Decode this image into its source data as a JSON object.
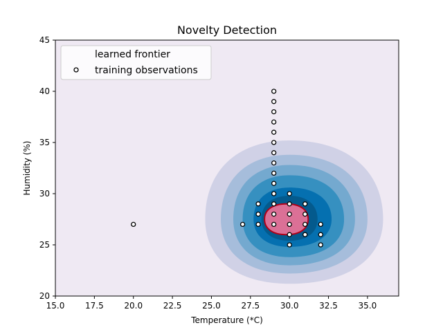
{
  "chart_data": {
    "type": "contour-scatter",
    "title": "Novelty Detection",
    "xlabel": "Temperature (*C)",
    "ylabel": "Humidity (%)",
    "xlim": [
      15.0,
      37.0
    ],
    "ylim": [
      20,
      45
    ],
    "xticks": [
      "15.0",
      "17.5",
      "20.0",
      "22.5",
      "25.0",
      "27.5",
      "30.0",
      "32.5",
      "35.0"
    ],
    "xtick_values": [
      15.0,
      17.5,
      20.0,
      22.5,
      25.0,
      27.5,
      30.0,
      32.5,
      35.0
    ],
    "yticks": [
      "20",
      "25",
      "30",
      "35",
      "40",
      "45"
    ],
    "ytick_values": [
      20,
      25,
      30,
      35,
      40,
      45
    ],
    "grid": false,
    "legend_position": "top-left",
    "legend": {
      "frontier_label": "learned frontier",
      "points_label": "training observations"
    },
    "colors": {
      "background": "#efe9f3",
      "contour_levels": [
        "#d0d1e6",
        "#a6bddb",
        "#74a9cf",
        "#3690c0",
        "#0570b0",
        "#045a8d"
      ],
      "frontier_fill": "#db7096",
      "frontier_edge": "#b00018",
      "point_edge": "#000000",
      "point_fill": "#ffffff"
    },
    "density_center": [
      30.0,
      27.5
    ],
    "contour_levels": [
      {
        "x_extent": [
          24.6,
          36.0
        ],
        "y_extent": [
          21.2,
          35.2
        ]
      },
      {
        "x_extent": [
          25.6,
          35.0
        ],
        "y_extent": [
          22.2,
          33.8
        ]
      },
      {
        "x_extent": [
          26.4,
          34.2
        ],
        "y_extent": [
          23.0,
          32.8
        ]
      },
      {
        "x_extent": [
          27.0,
          33.5
        ],
        "y_extent": [
          23.8,
          31.8
        ]
      },
      {
        "x_extent": [
          27.7,
          32.7
        ],
        "y_extent": [
          24.8,
          30.6
        ]
      },
      {
        "x_extent": [
          28.2,
          31.8
        ],
        "y_extent": [
          25.4,
          29.8
        ]
      }
    ],
    "frontier": {
      "x_extent": [
        28.4,
        31.2
      ],
      "y_extent": [
        26.0,
        29.0
      ]
    },
    "points": [
      [
        20,
        27
      ],
      [
        27,
        27
      ],
      [
        28,
        29
      ],
      [
        28,
        28
      ],
      [
        28,
        27
      ],
      [
        29,
        40
      ],
      [
        29,
        39
      ],
      [
        29,
        38
      ],
      [
        29,
        37
      ],
      [
        29,
        36
      ],
      [
        29,
        35
      ],
      [
        29,
        34
      ],
      [
        29,
        33
      ],
      [
        29,
        32
      ],
      [
        29,
        31
      ],
      [
        29,
        30
      ],
      [
        29,
        29
      ],
      [
        29,
        28
      ],
      [
        29,
        27
      ],
      [
        30,
        30
      ],
      [
        30,
        29
      ],
      [
        30,
        28
      ],
      [
        30,
        27
      ],
      [
        30,
        26
      ],
      [
        30,
        25
      ],
      [
        31,
        29
      ],
      [
        31,
        28
      ],
      [
        31,
        27
      ],
      [
        31,
        26
      ],
      [
        32,
        27
      ],
      [
        32,
        26
      ],
      [
        32,
        25
      ]
    ]
  }
}
